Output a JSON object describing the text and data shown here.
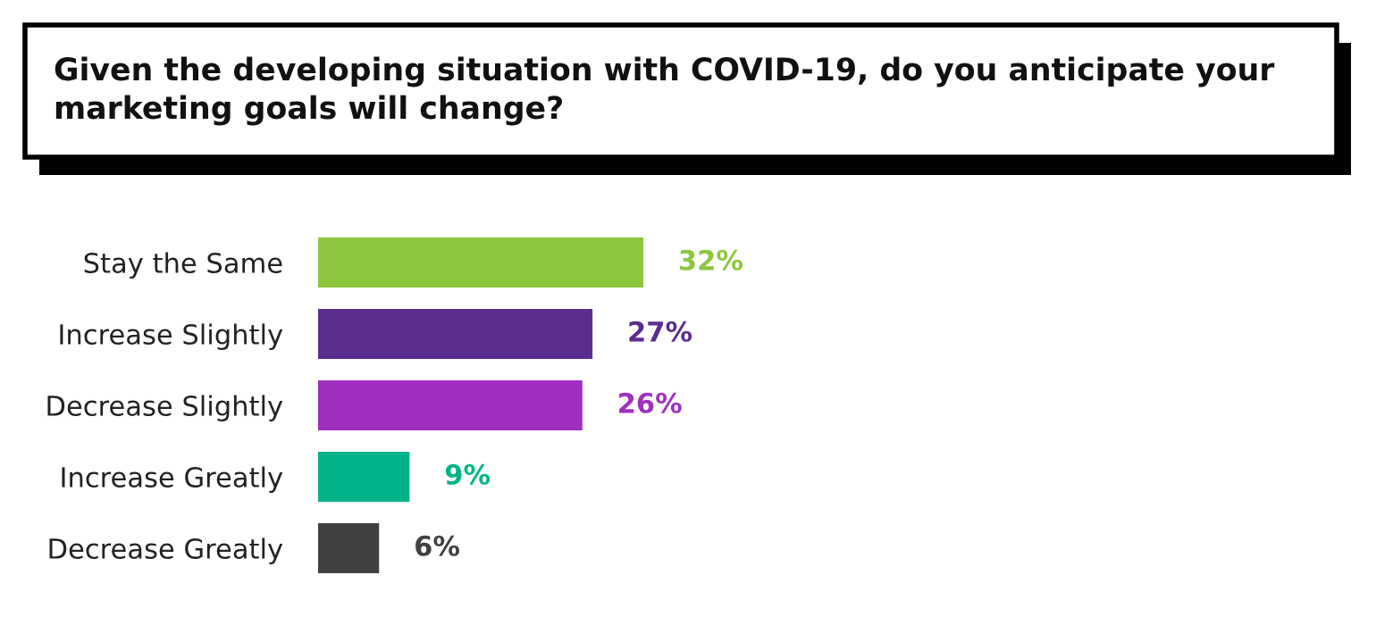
{
  "chart_data": {
    "type": "bar",
    "orientation": "horizontal",
    "title": "Given the developing situation with COVID-19, do you anticipate your marketing goals will change?",
    "categories": [
      "Stay the Same",
      "Increase Slightly",
      "Decrease Slightly",
      "Increase Greatly",
      "Decrease Greatly"
    ],
    "values": [
      32,
      27,
      26,
      9,
      6
    ],
    "value_labels": [
      "32%",
      "27%",
      "26%",
      "9%",
      "6%"
    ],
    "colors": [
      "#8cc63f",
      "#5b2d8e",
      "#a02fc0",
      "#00b386",
      "#404040"
    ],
    "grid": false,
    "legend": false
  }
}
